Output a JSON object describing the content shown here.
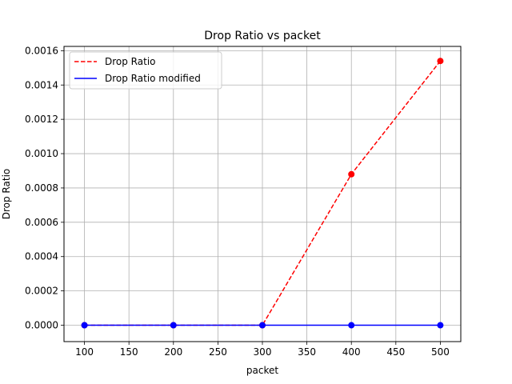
{
  "chart_data": {
    "type": "line",
    "title": "Drop Ratio vs packet",
    "xlabel": "packet",
    "ylabel": "Drop Ratio",
    "x": [
      100,
      200,
      300,
      400,
      500
    ],
    "xlim": [
      77,
      523
    ],
    "ylim": [
      -9.55e-05,
      0.001625
    ],
    "xticks": [
      "100",
      "150",
      "200",
      "250",
      "300",
      "350",
      "400",
      "450",
      "500"
    ],
    "xtick_values": [
      100,
      150,
      200,
      250,
      300,
      350,
      400,
      450,
      500
    ],
    "yticks": [
      "0.0000",
      "0.0002",
      "0.0004",
      "0.0006",
      "0.0008",
      "0.0010",
      "0.0012",
      "0.0014",
      "0.0016"
    ],
    "ytick_values": [
      0,
      0.0002,
      0.0004,
      0.0006,
      0.0008,
      0.001,
      0.0012,
      0.0014,
      0.0016
    ],
    "grid": true,
    "legend_position": "top-left",
    "series": [
      {
        "name": "Drop Ratio",
        "values": [
          0,
          0,
          0,
          0.00088,
          0.00154
        ],
        "color": "#ff0000",
        "style": "dashed",
        "marker": "circle"
      },
      {
        "name": "Drop Ratio modified",
        "values": [
          0,
          0,
          0,
          0,
          0
        ],
        "color": "#0000ff",
        "style": "solid",
        "marker": "circle"
      }
    ]
  }
}
